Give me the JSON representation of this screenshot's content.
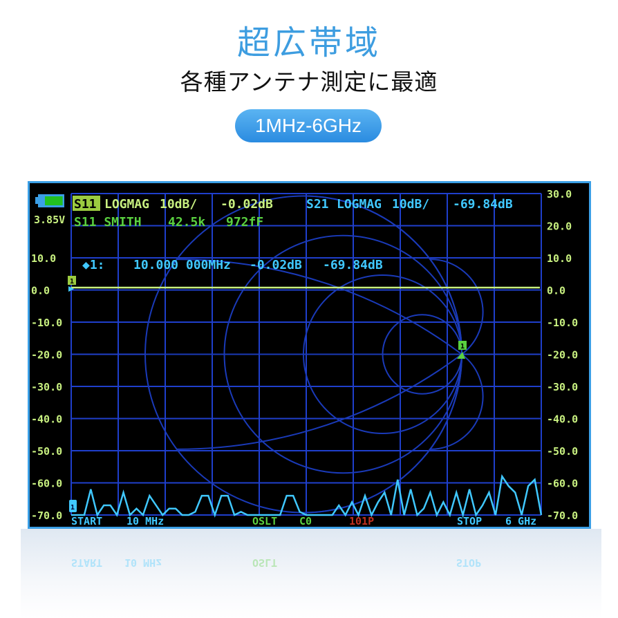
{
  "header": {
    "title": "超広帯域",
    "subtitle": "各種アンテナ測定に最適",
    "range_badge": "1MHz-6GHz"
  },
  "screen": {
    "battery_voltage": "3.85V",
    "battery_level": 0.8,
    "trace1": {
      "channel": "S11",
      "format": "LOGMAG",
      "scale": "10dB/",
      "value": "-0.02dB"
    },
    "trace2": {
      "channel": "S21",
      "format": "LOGMAG",
      "scale": "10dB/",
      "value": "-69.84dB"
    },
    "trace3": {
      "label": "S11 SMITH",
      "value1": "42.5k",
      "value2": "972fF"
    },
    "marker": {
      "label": "◆1:",
      "freq": "10.000 000MHz",
      "s11": "-0.02dB",
      "s21": "-69.84dB",
      "id": "1"
    },
    "y_ticks": [
      "30.0",
      "20.0",
      "10.0",
      "0.0",
      "-10.0",
      "-20.0",
      "-30.0",
      "-40.0",
      "-50.0",
      "-60.0",
      "-70.0"
    ],
    "start": {
      "label": "START",
      "value": "10 MHz"
    },
    "stop": {
      "label": "STOP",
      "value": "6 GHz"
    },
    "cal": {
      "label": "OSLT",
      "value": "C0"
    },
    "points": "101P",
    "colors": {
      "s11": "#c8f080",
      "s21": "#40c8ff",
      "grid": "#1f3fcc",
      "smith": "#1a3ab8",
      "cal": "#5ad040",
      "points": "#c03020",
      "frame": "#3b9fe6"
    },
    "s21_trace_db": [
      -70,
      -70,
      -70,
      -62,
      -70,
      -67,
      -67,
      -70,
      -63,
      -70,
      -68,
      -70,
      -64,
      -67,
      -70,
      -68,
      -68,
      -70,
      -70,
      -69,
      -64,
      -64,
      -70,
      -64,
      -64,
      -70,
      -69,
      -70,
      -70,
      -70,
      -70,
      -70,
      -70,
      -64,
      -64,
      -69,
      -70,
      -70,
      -70,
      -70,
      -70,
      -67,
      -70,
      -66,
      -70,
      -64,
      -70,
      -66,
      -63,
      -70,
      -59,
      -70,
      -62,
      -70,
      -68,
      -63,
      -70,
      -66,
      -70,
      -63,
      -70,
      -62,
      -70,
      -67,
      -63,
      -70,
      -58,
      -61,
      -63,
      -70,
      -61,
      -59,
      -70
    ]
  }
}
